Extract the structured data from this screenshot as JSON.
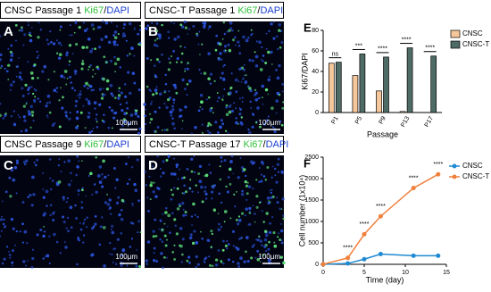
{
  "panels": [
    {
      "letter": "A",
      "title": "CNSC Passage 1",
      "stain1": "Ki67",
      "separator": "/",
      "stain2": "DAPI",
      "scale": "100μm"
    },
    {
      "letter": "B",
      "title": "CNSC-T Passage 1",
      "stain1": "Ki67",
      "separator": "/",
      "stain2": "DAPI",
      "scale": "100μm"
    },
    {
      "letter": "C",
      "title": "CNSC Passage 9",
      "stain1": "Ki67",
      "separator": "/",
      "stain2": "DAPI",
      "scale": "100μm"
    },
    {
      "letter": "D",
      "title": "CNSC-T Passage 17",
      "stain1": "Ki67",
      "separator": "/",
      "stain2": "DAPI",
      "scale": "100μm"
    }
  ],
  "chart_data": [
    {
      "type": "bar",
      "panel_label": "E",
      "y_label": "Ki67/DAPI",
      "x_label": "Passage",
      "categories": [
        "P1",
        "P5",
        "P9",
        "P13",
        "P17"
      ],
      "series": [
        {
          "name": "CNSC",
          "color": "#f6c79a",
          "values": [
            48,
            36,
            21,
            1,
            null
          ]
        },
        {
          "name": "CNSC-T",
          "color": "#4f6b66",
          "values": [
            49,
            57,
            54,
            63,
            55
          ]
        }
      ],
      "annotations": [
        "ns",
        "***",
        "****",
        "****",
        "****"
      ],
      "ylim": [
        0,
        80
      ],
      "yticks": [
        0,
        20,
        40,
        60,
        80
      ],
      "legend": "right"
    },
    {
      "type": "line",
      "panel_label": "F",
      "y_label": "Cell number (1x10⁴)",
      "x_label": "Time (day)",
      "x": [
        0,
        3,
        5,
        7,
        11,
        14
      ],
      "series": [
        {
          "name": "CNSC",
          "color": "#1f8ad2",
          "values": [
            0,
            20,
            120,
            240,
            200,
            200
          ]
        },
        {
          "name": "CNSC-T",
          "color": "#f0803c",
          "values": [
            0,
            150,
            700,
            1120,
            1780,
            2100
          ]
        }
      ],
      "annotations": [
        null,
        "****",
        "****",
        "****",
        "****",
        "****"
      ],
      "xlim": [
        0,
        15
      ],
      "xticks": [
        0,
        5,
        10,
        15
      ],
      "ylim": [
        0,
        2500
      ],
      "yticks": [
        0,
        500,
        1000,
        1500,
        2000,
        2500
      ],
      "legend": "top-right"
    }
  ]
}
